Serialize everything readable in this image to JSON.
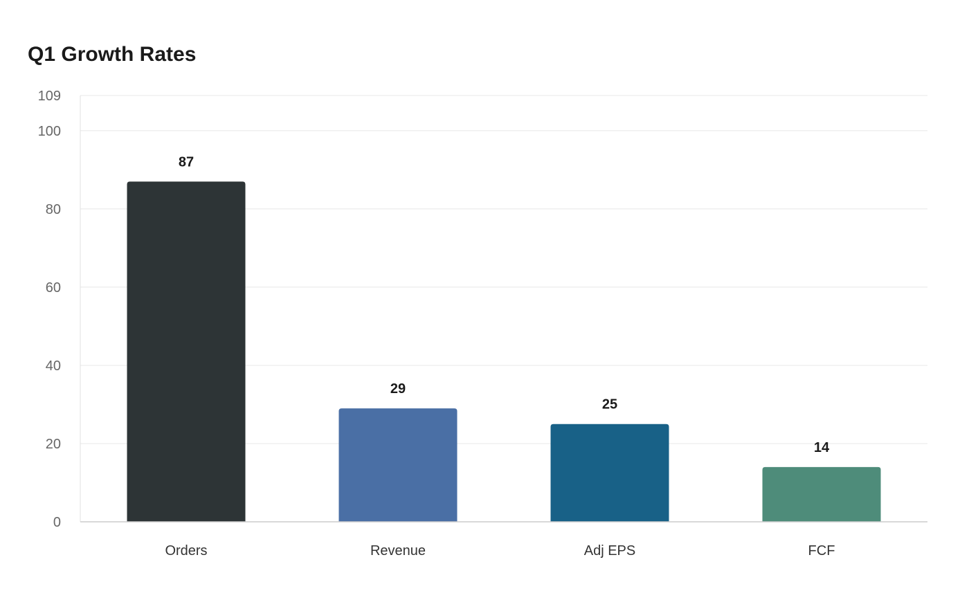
{
  "chart_data": {
    "type": "bar",
    "title": "Q1 Growth Rates",
    "categories": [
      "Orders",
      "Revenue",
      "Adj EPS",
      "FCF"
    ],
    "values": [
      87,
      29,
      25,
      14
    ],
    "value_labels": [
      "87",
      "29",
      "25",
      "14"
    ],
    "colors": [
      "#2d3436",
      "#4a6fa5",
      "#186187",
      "#4e8c7a"
    ],
    "xlabel": "",
    "ylabel": "",
    "ylim": [
      0,
      109
    ],
    "yticks": [
      0,
      20,
      40,
      60,
      80,
      100,
      109
    ],
    "ytick_labels": [
      "0",
      "20",
      "40",
      "60",
      "80",
      "100",
      "109"
    ],
    "grid": true,
    "legend": "none"
  }
}
